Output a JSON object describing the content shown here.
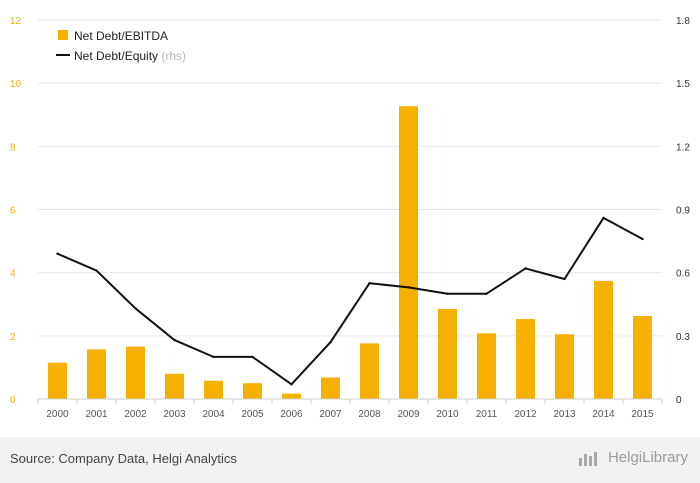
{
  "chart_data": {
    "type": "bar+line",
    "categories": [
      "2000",
      "2001",
      "2002",
      "2003",
      "2004",
      "2005",
      "2006",
      "2007",
      "2008",
      "2009",
      "2010",
      "2011",
      "2012",
      "2013",
      "2014",
      "2015"
    ],
    "series": [
      {
        "name": "Net Debt/EBITDA",
        "type": "bar",
        "axis": "left",
        "color": "#f5b000",
        "values": [
          1.15,
          1.57,
          1.66,
          0.8,
          0.58,
          0.5,
          0.17,
          0.68,
          1.76,
          9.27,
          2.85,
          2.08,
          2.53,
          2.05,
          3.74,
          2.63
        ]
      },
      {
        "name": "Net Debt/Equity",
        "name_suffix": "(rhs)",
        "type": "line",
        "axis": "right",
        "color": "#111111",
        "values": [
          0.69,
          0.61,
          0.43,
          0.28,
          0.2,
          0.2,
          0.07,
          0.27,
          0.55,
          0.53,
          0.5,
          0.5,
          0.62,
          0.57,
          0.86,
          0.76
        ]
      }
    ],
    "left_axis": {
      "ylim": [
        0,
        12
      ],
      "ticks": [
        "0",
        "2",
        "4",
        "6",
        "8",
        "10",
        "12"
      ],
      "color": "#f5b000"
    },
    "right_axis": {
      "ylim": [
        0,
        1.8
      ],
      "ticks": [
        "0",
        "0.3",
        "0.6",
        "0.9",
        "1.2",
        "1.5",
        "1.8"
      ],
      "color": "#333333"
    },
    "grid": true,
    "legend_position": "top-left"
  },
  "footer": {
    "source": "Source: Company Data, Helgi Analytics",
    "brand": "HelgiLibrary"
  },
  "icons": {
    "brand": "bar-chart-logo-icon"
  }
}
